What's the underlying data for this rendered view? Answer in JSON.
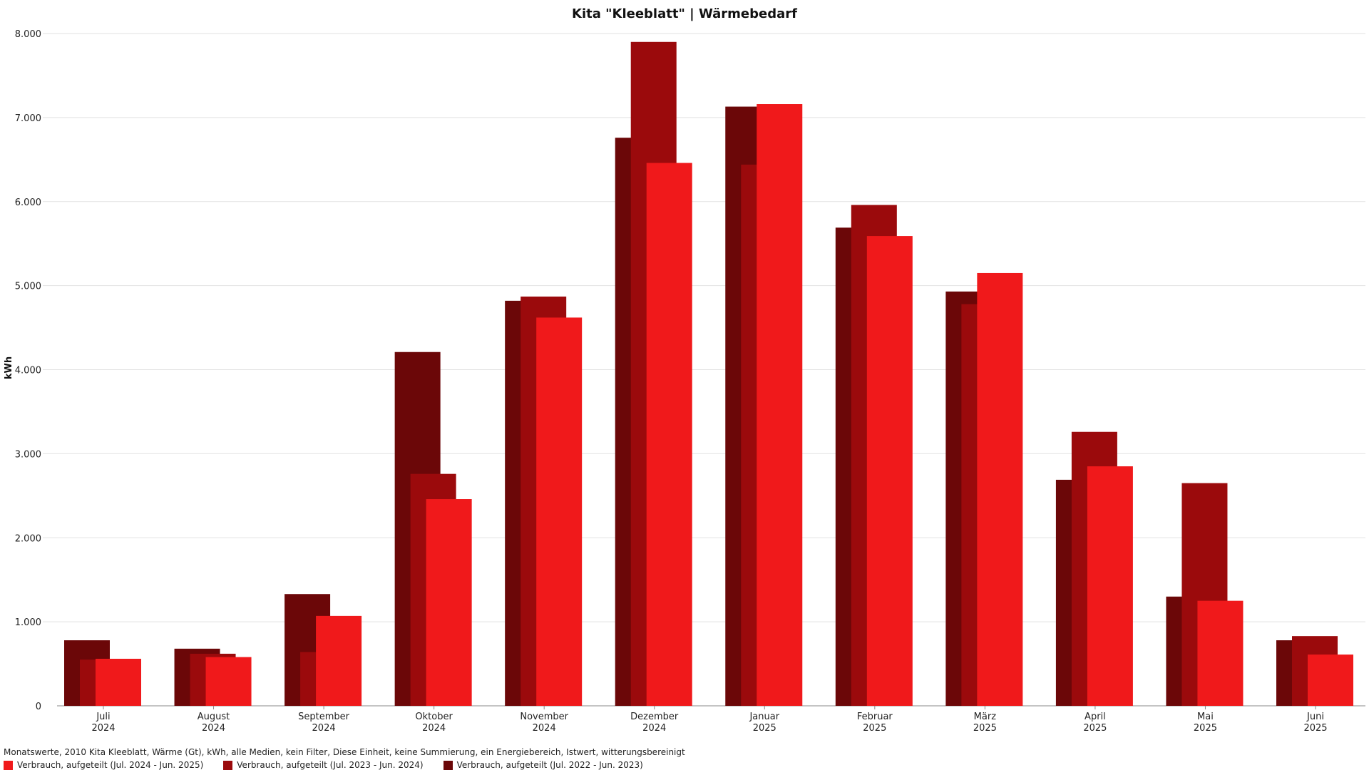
{
  "chart_data": {
    "type": "bar",
    "title": "Kita \"Kleeblatt\" | Wärmebedarf",
    "ylabel": "kWh",
    "ylim": [
      0,
      8000
    ],
    "yticks": [
      {
        "value": 0,
        "label": "0"
      },
      {
        "value": 1000,
        "label": "1.000"
      },
      {
        "value": 2000,
        "label": "2.000"
      },
      {
        "value": 3000,
        "label": "3.000"
      },
      {
        "value": 4000,
        "label": "4.000"
      },
      {
        "value": 5000,
        "label": "5.000"
      },
      {
        "value": 6000,
        "label": "6.000"
      },
      {
        "value": 7000,
        "label": "7.000"
      },
      {
        "value": 8000,
        "label": "8.000"
      }
    ],
    "grid": true,
    "legend_position": "bottom-left",
    "categories": [
      {
        "month": "Juli",
        "year": "2024"
      },
      {
        "month": "August",
        "year": "2024"
      },
      {
        "month": "September",
        "year": "2024"
      },
      {
        "month": "Oktober",
        "year": "2024"
      },
      {
        "month": "November",
        "year": "2024"
      },
      {
        "month": "Dezember",
        "year": "2024"
      },
      {
        "month": "Januar",
        "year": "2025"
      },
      {
        "month": "Februar",
        "year": "2025"
      },
      {
        "month": "März",
        "year": "2025"
      },
      {
        "month": "April",
        "year": "2025"
      },
      {
        "month": "Mai",
        "year": "2025"
      },
      {
        "month": "Juni",
        "year": "2025"
      }
    ],
    "series": [
      {
        "name": "Verbrauch, aufgeteilt (Jul. 2022 - Jun. 2023)",
        "color": "#6b0708",
        "values": [
          780,
          680,
          1330,
          4210,
          4820,
          6760,
          7130,
          5690,
          4930,
          2690,
          1300,
          780
        ]
      },
      {
        "name": "Verbrauch, aufgeteilt (Jul. 2023 - Jun. 2024)",
        "color": "#9b0a0c",
        "values": [
          550,
          620,
          640,
          2760,
          4870,
          7900,
          6440,
          5960,
          4780,
          3260,
          2650,
          830
        ]
      },
      {
        "name": "Verbrauch, aufgeteilt (Jul. 2024 - Jun. 2025)",
        "color": "#f0191b",
        "values": [
          560,
          580,
          1070,
          2460,
          4620,
          6460,
          7160,
          5590,
          5150,
          2850,
          1250,
          610
        ]
      }
    ]
  },
  "footer_text": "Monatswerte, 2010 Kita Kleeblatt, Wärme (Gt), kWh, alle Medien, kein Filter, Diese Einheit, keine Summierung, ein Energiebereich, Istwert, witterungsbereinigt",
  "legend": [
    {
      "label": "Verbrauch, aufgeteilt (Jul. 2024 - Jun. 2025)",
      "color": "#f0191b"
    },
    {
      "label": "Verbrauch, aufgeteilt (Jul. 2023 - Jun. 2024)",
      "color": "#9b0a0c"
    },
    {
      "label": "Verbrauch, aufgeteilt (Jul. 2022 - Jun. 2023)",
      "color": "#6b0708"
    }
  ]
}
